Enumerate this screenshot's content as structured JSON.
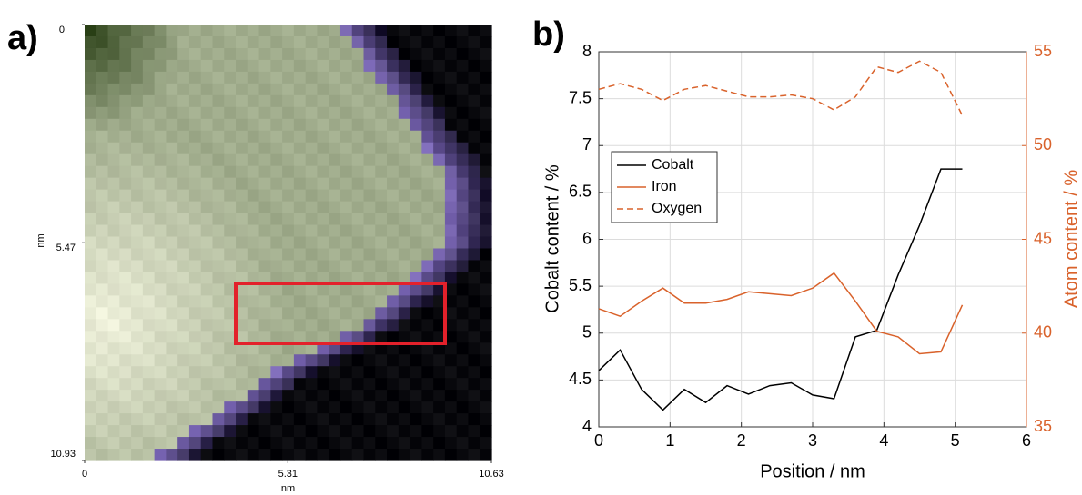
{
  "chart_data": [
    {
      "type": "image",
      "panel_label": "a)",
      "xlabel": "nm",
      "ylabel": "nm",
      "xlim": [
        0,
        10.63
      ],
      "ylim": [
        0,
        10.93
      ],
      "yreverse": true,
      "xticks": [
        0,
        5.31,
        10.63
      ],
      "yticks": [
        0,
        5.47,
        10.93
      ]
    },
    {
      "type": "line",
      "panel_label": "b)",
      "xlabel": "Position / nm",
      "ylabel": "Cobalt content / %",
      "y2label": "Atom content / %",
      "x": [
        0,
        0.3,
        0.6,
        0.9,
        1.2,
        1.5,
        1.8,
        2.1,
        2.4,
        2.7,
        3.0,
        3.3,
        3.6,
        3.9,
        4.2,
        4.5,
        4.8,
        5.1
      ],
      "xlim": [
        0,
        6
      ],
      "xticks": [
        0,
        1,
        2,
        3,
        4,
        5,
        6
      ],
      "ylim": [
        4,
        8
      ],
      "yticks": [
        4,
        4.5,
        5,
        5.5,
        6,
        6.5,
        7,
        7.5,
        8
      ],
      "y2lim": [
        35,
        55
      ],
      "y2ticks": [
        35,
        40,
        45,
        50,
        55
      ],
      "grid": true,
      "legend": "upper left",
      "y2color": "#d9622b",
      "series": [
        {
          "name": "Cobalt",
          "color": "#000000",
          "dash": "solid",
          "values": [
            4.6,
            4.82,
            4.4,
            4.18,
            4.4,
            4.26,
            4.44,
            4.35,
            4.44,
            4.47,
            4.34,
            4.3,
            4.96,
            5.03,
            5.62,
            6.15,
            6.75,
            6.75
          ]
        },
        {
          "name": "Iron",
          "color": "#d9622b",
          "dash": "solid",
          "axis": "y2",
          "values": [
            41.3,
            40.9,
            41.7,
            42.4,
            41.6,
            41.6,
            41.8,
            42.2,
            42.1,
            42.0,
            42.4,
            43.2,
            41.7,
            40.1,
            39.8,
            38.9,
            39.0,
            41.5
          ]
        },
        {
          "name": "Oxygen",
          "color": "#d9622b",
          "dash": "dashed",
          "axis": "y2",
          "values": [
            53.0,
            53.3,
            53.0,
            52.4,
            53.0,
            53.2,
            52.9,
            52.6,
            52.6,
            52.7,
            52.5,
            51.9,
            52.6,
            54.2,
            53.9,
            54.5,
            53.9,
            51.6
          ]
        }
      ]
    }
  ]
}
